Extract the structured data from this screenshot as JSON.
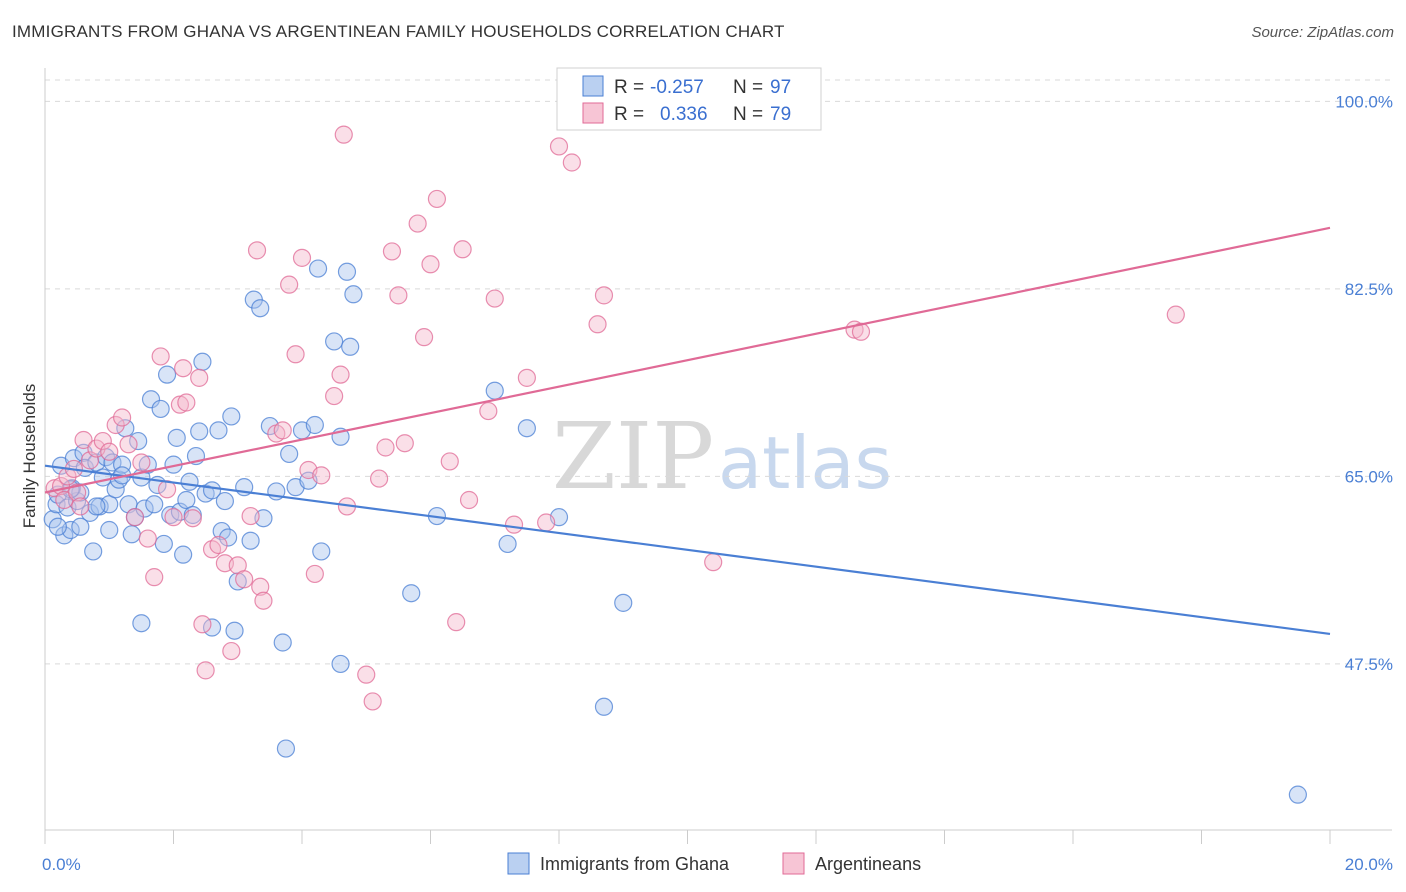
{
  "title": "IMMIGRANTS FROM GHANA VS ARGENTINEAN FAMILY HOUSEHOLDS CORRELATION CHART",
  "source": "Source: ZipAtlas.com",
  "watermark": {
    "zip": "ZIP",
    "atlas": "atlas"
  },
  "colors": {
    "blue": "#4a7fd4",
    "blue_fill": "#a9c4ee",
    "pink": "#e06a96",
    "pink_fill": "#f5b7cb",
    "grid": "#d9d9d9"
  },
  "legend": {
    "r_label": "R =",
    "n_label": "N =",
    "rows": [
      {
        "r": "-0.257",
        "n": "97"
      },
      {
        "r": "0.336",
        "n": "79"
      }
    ]
  },
  "chart_data": {
    "type": "scatter",
    "title": "IMMIGRANTS FROM GHANA VS ARGENTINEAN FAMILY HOUSEHOLDS CORRELATION CHART",
    "xlabel": "",
    "ylabel": "Family Households",
    "xlim": [
      0,
      20
    ],
    "ylim": [
      32,
      102
    ],
    "x_tick_labels": [
      "0.0%",
      "20.0%"
    ],
    "y_ticks": [
      47.5,
      65.0,
      82.5,
      100.0
    ],
    "y_tick_labels": [
      "47.5%",
      "65.0%",
      "82.5%",
      "100.0%"
    ],
    "grid": true,
    "legend_position": "top-center",
    "series": [
      {
        "name": "Immigrants from Ghana",
        "color": "#4a7fd4",
        "trend": {
          "x": [
            0,
            20
          ],
          "y": [
            66.0,
            50.3
          ]
        },
        "points": [
          [
            0.12,
            61.0
          ],
          [
            0.18,
            62.4
          ],
          [
            0.2,
            63.3
          ],
          [
            0.25,
            66.0
          ],
          [
            0.3,
            59.5
          ],
          [
            0.35,
            62.1
          ],
          [
            0.4,
            60.0
          ],
          [
            0.42,
            63.9
          ],
          [
            0.45,
            66.7
          ],
          [
            0.5,
            62.7
          ],
          [
            0.55,
            63.5
          ],
          [
            0.6,
            67.2
          ],
          [
            0.62,
            65.8
          ],
          [
            0.7,
            61.6
          ],
          [
            0.75,
            58.0
          ],
          [
            0.8,
            66.3
          ],
          [
            0.85,
            62.2
          ],
          [
            0.9,
            64.9
          ],
          [
            0.95,
            66.8
          ],
          [
            1.0,
            62.4
          ],
          [
            1.05,
            66.3
          ],
          [
            1.1,
            63.8
          ],
          [
            1.15,
            64.7
          ],
          [
            1.2,
            66.1
          ],
          [
            1.25,
            69.5
          ],
          [
            1.3,
            62.4
          ],
          [
            1.35,
            59.6
          ],
          [
            1.4,
            61.2
          ],
          [
            1.45,
            68.3
          ],
          [
            1.5,
            64.9
          ],
          [
            1.55,
            62.0
          ],
          [
            1.6,
            66.1
          ],
          [
            1.65,
            72.2
          ],
          [
            1.7,
            62.4
          ],
          [
            1.75,
            64.2
          ],
          [
            1.8,
            71.3
          ],
          [
            1.85,
            58.7
          ],
          [
            1.9,
            74.5
          ],
          [
            1.95,
            61.4
          ],
          [
            2.0,
            66.1
          ],
          [
            2.05,
            68.6
          ],
          [
            2.1,
            61.7
          ],
          [
            2.15,
            57.7
          ],
          [
            2.2,
            62.8
          ],
          [
            2.25,
            64.5
          ],
          [
            2.3,
            61.4
          ],
          [
            2.35,
            66.9
          ],
          [
            2.4,
            69.2
          ],
          [
            2.45,
            75.7
          ],
          [
            2.5,
            63.4
          ],
          [
            2.6,
            63.7
          ],
          [
            2.7,
            69.3
          ],
          [
            2.75,
            59.9
          ],
          [
            2.8,
            62.7
          ],
          [
            2.85,
            59.3
          ],
          [
            2.9,
            70.6
          ],
          [
            2.95,
            50.6
          ],
          [
            3.0,
            55.2
          ],
          [
            3.1,
            64.0
          ],
          [
            3.2,
            59.0
          ],
          [
            3.25,
            81.5
          ],
          [
            3.35,
            80.7
          ],
          [
            3.4,
            61.1
          ],
          [
            3.5,
            69.7
          ],
          [
            3.6,
            63.6
          ],
          [
            3.7,
            49.5
          ],
          [
            3.75,
            39.6
          ],
          [
            3.8,
            67.1
          ],
          [
            3.9,
            64.0
          ],
          [
            4.0,
            69.3
          ],
          [
            4.1,
            64.6
          ],
          [
            4.2,
            69.8
          ],
          [
            4.25,
            84.4
          ],
          [
            4.3,
            58.0
          ],
          [
            4.5,
            77.6
          ],
          [
            4.6,
            68.7
          ],
          [
            4.6,
            47.5
          ],
          [
            4.7,
            84.1
          ],
          [
            4.75,
            77.1
          ],
          [
            4.8,
            82.0
          ],
          [
            5.7,
            54.1
          ],
          [
            6.1,
            61.3
          ],
          [
            7.0,
            73.0
          ],
          [
            7.2,
            58.7
          ],
          [
            7.5,
            69.5
          ],
          [
            8.0,
            61.2
          ],
          [
            8.7,
            43.5
          ],
          [
            9.0,
            53.2
          ],
          [
            19.5,
            35.3
          ],
          [
            0.2,
            60.3
          ],
          [
            0.4,
            63.8
          ],
          [
            1.0,
            60.0
          ],
          [
            1.2,
            65.1
          ],
          [
            1.5,
            51.3
          ],
          [
            2.6,
            50.9
          ],
          [
            0.8,
            62.2
          ],
          [
            0.55,
            60.3
          ]
        ]
      },
      {
        "name": "Argentineans",
        "color": "#e06a96",
        "trend": {
          "x": [
            0,
            20
          ],
          "y": [
            63.5,
            88.2
          ]
        },
        "points": [
          [
            0.15,
            63.9
          ],
          [
            0.25,
            64.1
          ],
          [
            0.3,
            62.8
          ],
          [
            0.35,
            65.0
          ],
          [
            0.45,
            65.7
          ],
          [
            0.5,
            63.5
          ],
          [
            0.55,
            62.2
          ],
          [
            0.6,
            68.4
          ],
          [
            0.7,
            66.5
          ],
          [
            0.8,
            67.6
          ],
          [
            0.9,
            68.3
          ],
          [
            1.0,
            67.3
          ],
          [
            1.1,
            69.8
          ],
          [
            1.2,
            70.5
          ],
          [
            1.3,
            68.0
          ],
          [
            1.4,
            61.2
          ],
          [
            1.5,
            66.3
          ],
          [
            1.6,
            59.2
          ],
          [
            1.7,
            55.6
          ],
          [
            1.8,
            76.2
          ],
          [
            1.9,
            63.8
          ],
          [
            2.0,
            61.2
          ],
          [
            2.1,
            71.7
          ],
          [
            2.15,
            75.1
          ],
          [
            2.2,
            71.9
          ],
          [
            2.3,
            61.1
          ],
          [
            2.4,
            74.2
          ],
          [
            2.45,
            51.2
          ],
          [
            2.5,
            46.9
          ],
          [
            2.6,
            58.2
          ],
          [
            2.7,
            58.6
          ],
          [
            2.8,
            56.9
          ],
          [
            2.9,
            48.7
          ],
          [
            3.0,
            56.7
          ],
          [
            3.1,
            55.4
          ],
          [
            3.2,
            61.3
          ],
          [
            3.3,
            86.1
          ],
          [
            3.35,
            54.7
          ],
          [
            3.4,
            53.4
          ],
          [
            3.6,
            69.0
          ],
          [
            3.7,
            69.3
          ],
          [
            3.8,
            82.9
          ],
          [
            3.9,
            76.4
          ],
          [
            4.0,
            85.4
          ],
          [
            4.1,
            65.6
          ],
          [
            4.2,
            55.9
          ],
          [
            4.3,
            65.1
          ],
          [
            4.5,
            72.5
          ],
          [
            4.6,
            74.5
          ],
          [
            4.65,
            96.9
          ],
          [
            4.7,
            62.2
          ],
          [
            5.0,
            46.5
          ],
          [
            5.1,
            44.0
          ],
          [
            5.2,
            64.8
          ],
          [
            5.3,
            67.7
          ],
          [
            5.4,
            86.0
          ],
          [
            5.5,
            81.9
          ],
          [
            5.6,
            68.1
          ],
          [
            5.8,
            88.6
          ],
          [
            5.9,
            78.0
          ],
          [
            6.0,
            84.8
          ],
          [
            6.1,
            90.9
          ],
          [
            6.3,
            66.4
          ],
          [
            6.4,
            51.4
          ],
          [
            6.5,
            86.2
          ],
          [
            6.6,
            62.8
          ],
          [
            6.9,
            71.1
          ],
          [
            7.0,
            81.6
          ],
          [
            7.3,
            60.5
          ],
          [
            7.5,
            74.2
          ],
          [
            7.8,
            60.7
          ],
          [
            8.0,
            95.8
          ],
          [
            8.2,
            94.3
          ],
          [
            8.6,
            79.2
          ],
          [
            8.7,
            81.9
          ],
          [
            10.4,
            57.0
          ],
          [
            12.6,
            78.7
          ],
          [
            12.7,
            78.5
          ],
          [
            17.6,
            80.1
          ]
        ]
      }
    ]
  },
  "bottom_legend": [
    "Immigrants from Ghana",
    "Argentineans"
  ]
}
